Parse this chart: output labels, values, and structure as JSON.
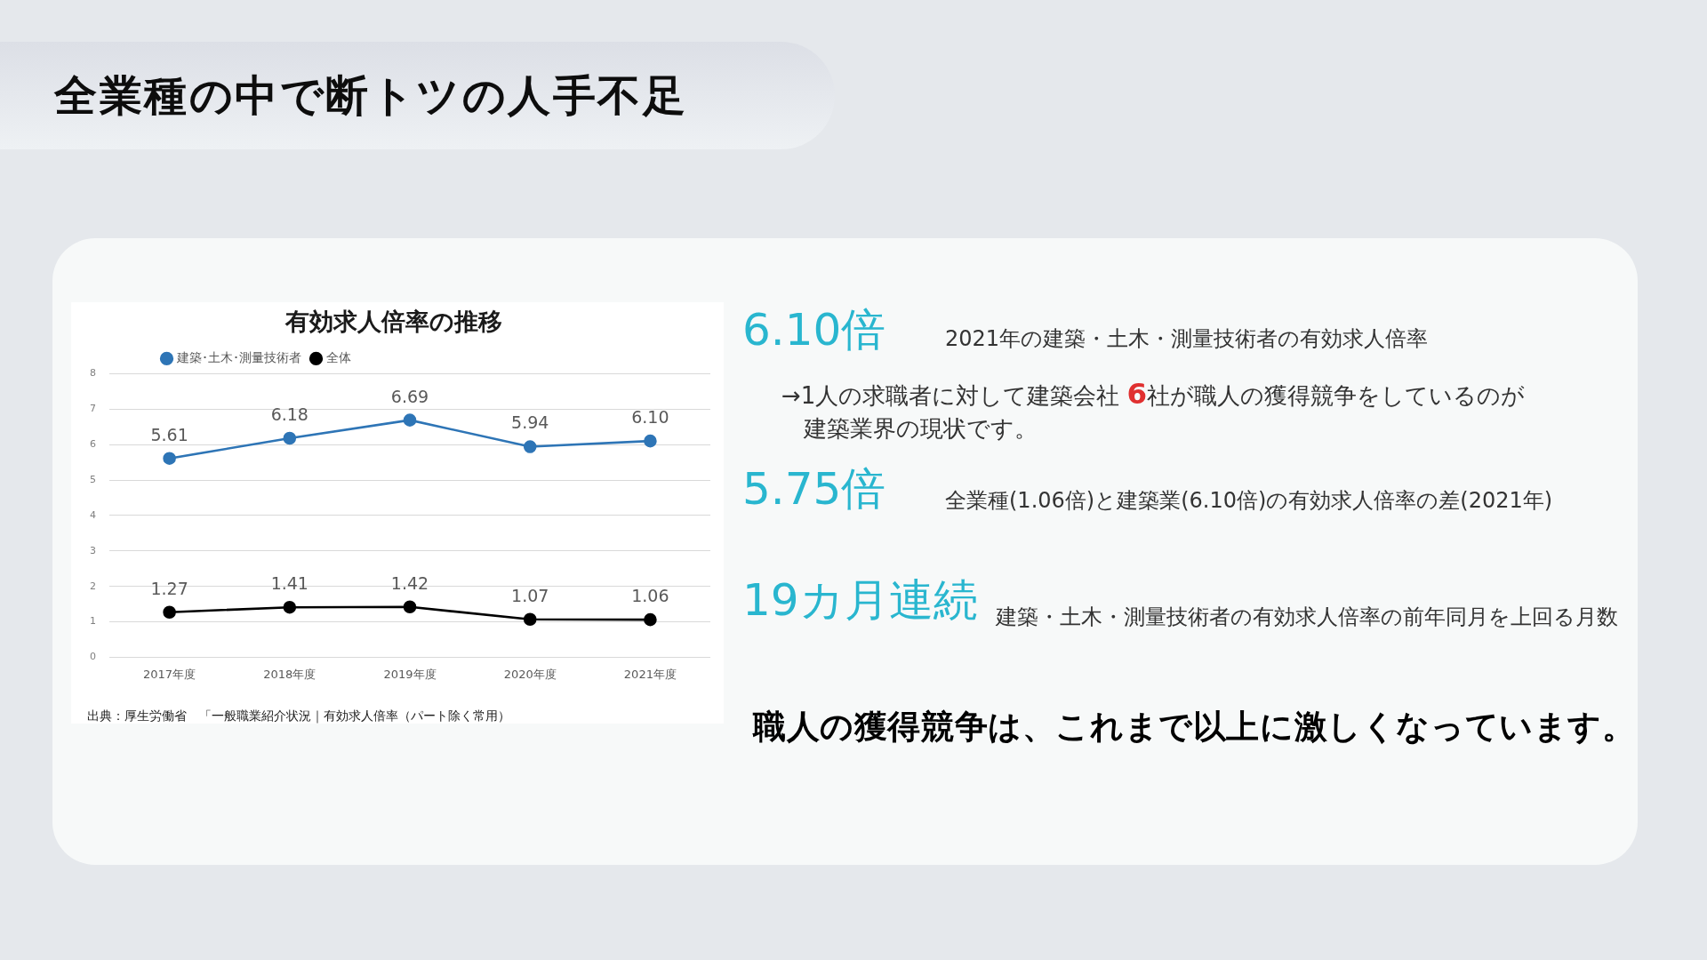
{
  "chart_data": [
    {
      "type": "other",
      "title": "全業種の中で断トツの人手不足"
    },
    {
      "type": "line",
      "title": "有効求人倍率の推移",
      "categories": [
        "2017年度",
        "2018年度",
        "2019年度",
        "2020年度",
        "2021年度"
      ],
      "series": [
        {
          "name": "建築･土木･測量技術者",
          "color": "#2e75b6",
          "values": [
            5.61,
            6.18,
            6.69,
            5.94,
            6.1
          ],
          "value_labels": [
            "5.61",
            "6.18",
            "6.69",
            "5.94",
            "6.10"
          ]
        },
        {
          "name": "全体",
          "color": "#000000",
          "values": [
            1.27,
            1.41,
            1.42,
            1.07,
            1.06
          ],
          "value_labels": [
            "1.27",
            "1.41",
            "1.42",
            "1.07",
            "1.06"
          ]
        }
      ],
      "ylim": [
        0,
        8
      ],
      "yticks": [
        0,
        1,
        2,
        3,
        4,
        5,
        6,
        7,
        8
      ],
      "grid": "y",
      "legend": "top left",
      "marker": "circle",
      "line_style": "solid",
      "annotations": [
        "出典：厚生労働省　「一般職業紹介状況｜有効求人倍率（パート除く常用）"
      ]
    },
    {
      "type": "other",
      "annotations": [
        "6.10倍",
        "2021年の建築・土木・測量技術者の有効求人倍率",
        "→1人の求職者に対して建築会社 6社が職人の獲得競争をしているのが建築業界の現状です。",
        "5.75倍",
        "全業種(1.06倍)と建築業(6.10倍)の有効求人倍率の差(2021年)",
        "19カ月連続",
        "建築・土木・測量技術者の有効求人倍率の前年同月を上回る月数",
        "職人の獲得競争は、これまで以上に激しくなっています。"
      ]
    }
  ]
}
